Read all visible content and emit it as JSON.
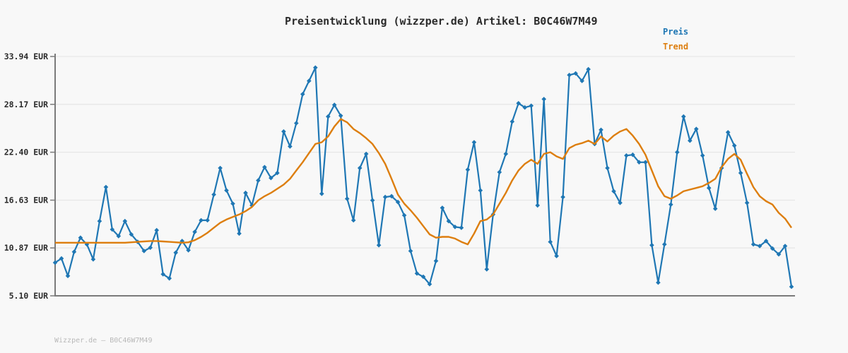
{
  "title": "Preisentwicklung (wizzper.de) Artikel: B0C46W7M49",
  "legend": {
    "preis_label": "Preis",
    "trend_label": "Trend"
  },
  "footer": "Wizzper.de – B0C46W7M49",
  "colors": {
    "preis": "#1f77b4",
    "trend": "#dd7e0e",
    "grid": "#e7e7e7",
    "axis": "#7a7a7a",
    "tick_text": "#2b2b2b",
    "title_text": "#2b2b2b",
    "footer_text": "#b9b9b9",
    "background": "#f8f8f8"
  },
  "chart_data": {
    "type": "line",
    "title": "Preisentwicklung (wizzper.de) Artikel: B0C46W7M49",
    "xlabel": "",
    "ylabel": "",
    "grid": true,
    "legend_position": "top-right",
    "x_axis": {
      "tick_labels": []
    },
    "y_axis": {
      "unit": "EUR",
      "range": [
        5.1,
        33.94
      ],
      "ticks": [
        {
          "value": 33.94,
          "label": "33.94 EUR"
        },
        {
          "value": 28.17,
          "label": "28.17 EUR"
        },
        {
          "value": 22.4,
          "label": "22.40 EUR"
        },
        {
          "value": 16.63,
          "label": "16.63 EUR"
        },
        {
          "value": 10.87,
          "label": "10.87 EUR"
        },
        {
          "value": 5.1,
          "label": "5.10 EUR"
        }
      ]
    },
    "series": [
      {
        "name": "Preis",
        "color": "#1f77b4",
        "marker": "diamond",
        "values": [
          9.1,
          9.6,
          7.5,
          10.4,
          12.1,
          11.3,
          9.5,
          14.1,
          18.2,
          13.1,
          12.3,
          14.1,
          12.5,
          11.6,
          10.5,
          10.9,
          13.0,
          7.7,
          7.2,
          10.3,
          11.7,
          10.6,
          12.8,
          14.2,
          14.2,
          17.3,
          20.5,
          17.8,
          16.2,
          12.6,
          17.5,
          16.0,
          19.0,
          20.6,
          19.3,
          19.9,
          24.9,
          23.1,
          25.9,
          29.4,
          31.0,
          32.6,
          17.4,
          26.7,
          28.1,
          26.8,
          16.8,
          14.2,
          20.5,
          22.2,
          16.6,
          11.2,
          17.0,
          17.1,
          16.4,
          14.8,
          10.5,
          7.8,
          7.4,
          6.5,
          9.3,
          15.7,
          14.1,
          13.4,
          13.3,
          20.3,
          23.6,
          17.8,
          8.3,
          14.9,
          20.0,
          22.2,
          26.1,
          28.3,
          27.8,
          28.0,
          16.0,
          28.8,
          11.6,
          9.9,
          17.0,
          31.7,
          31.9,
          31.0,
          32.4,
          23.4,
          25.1,
          20.5,
          17.7,
          16.3,
          22.0,
          22.1,
          21.2,
          21.2,
          11.2,
          6.7,
          11.3,
          16.1,
          22.4,
          26.7,
          23.8,
          25.2,
          22.0,
          18.1,
          15.6,
          20.5,
          24.8,
          23.2,
          19.9,
          16.3,
          11.3,
          11.1,
          11.7,
          10.8,
          10.1,
          11.1,
          6.2
        ]
      },
      {
        "name": "Trend",
        "color": "#dd7e0e",
        "marker": "none",
        "values": [
          11.5,
          11.5,
          11.5,
          11.5,
          11.5,
          11.5,
          11.5,
          11.5,
          11.5,
          11.5,
          11.5,
          11.5,
          11.55,
          11.6,
          11.65,
          11.7,
          11.7,
          11.65,
          11.6,
          11.55,
          11.5,
          11.55,
          11.8,
          12.2,
          12.7,
          13.3,
          13.9,
          14.3,
          14.6,
          14.9,
          15.3,
          15.8,
          16.6,
          17.1,
          17.5,
          18.0,
          18.5,
          19.2,
          20.2,
          21.2,
          22.3,
          23.4,
          23.6,
          24.3,
          25.5,
          26.4,
          26.0,
          25.2,
          24.7,
          24.1,
          23.4,
          22.3,
          21.0,
          19.2,
          17.3,
          16.2,
          15.4,
          14.5,
          13.5,
          12.5,
          12.1,
          12.2,
          12.2,
          12.0,
          11.6,
          11.3,
          12.6,
          14.1,
          14.3,
          14.9,
          16.2,
          17.5,
          19.0,
          20.2,
          21.0,
          21.5,
          21.0,
          22.2,
          22.4,
          21.9,
          21.6,
          22.9,
          23.3,
          23.5,
          23.8,
          23.4,
          24.3,
          23.7,
          24.4,
          24.9,
          25.2,
          24.4,
          23.4,
          22.1,
          20.2,
          18.3,
          17.1,
          16.8,
          17.2,
          17.7,
          17.9,
          18.1,
          18.3,
          18.7,
          19.2,
          20.6,
          21.6,
          22.2,
          21.5,
          19.8,
          18.2,
          17.1,
          16.5,
          16.1,
          15.1,
          14.4,
          13.3
        ]
      }
    ]
  }
}
